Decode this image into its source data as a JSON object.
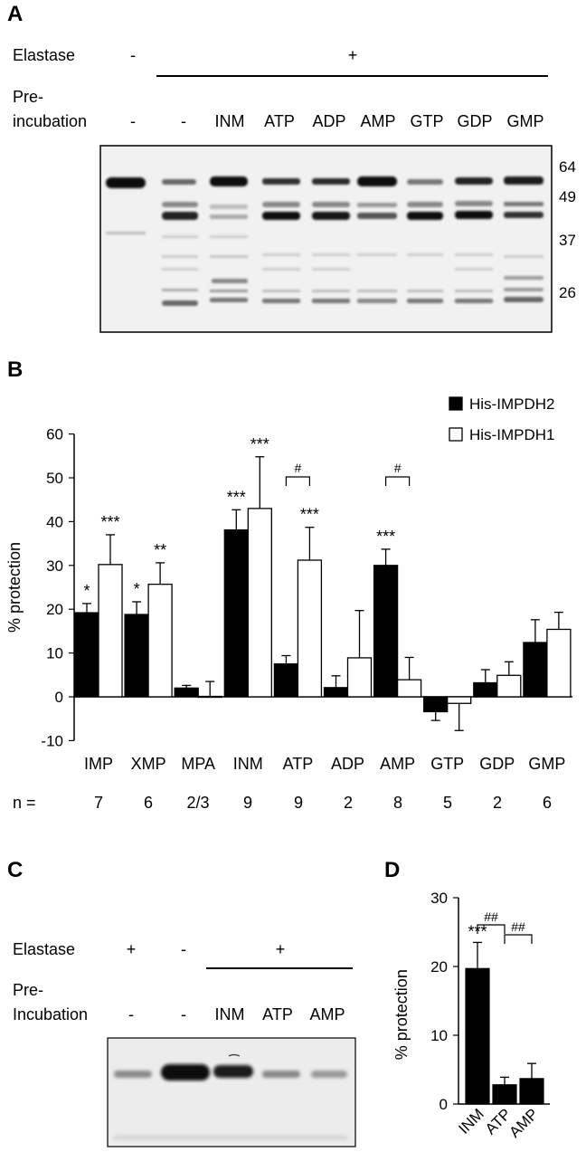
{
  "panelA": {
    "letter": "A",
    "elastase_label": "Elastase",
    "elastase_signs": [
      "-",
      "+"
    ],
    "preinc_label_line1": "Pre-",
    "preinc_label_line2": "incubation",
    "lanes": [
      "-",
      "-",
      "INM",
      "ATP",
      "ADP",
      "AMP",
      "GTP",
      "GDP",
      "GMP"
    ],
    "markers": [
      "64",
      "49",
      "37",
      "26"
    ]
  },
  "panelB": {
    "letter": "B",
    "n_label": "n =",
    "n_values": [
      "7",
      "6",
      "2/3",
      "9",
      "9",
      "2",
      "8",
      "5",
      "2",
      "6"
    ]
  },
  "panelC": {
    "letter": "C",
    "elastase_label": "Elastase",
    "elastase_signs": [
      "+",
      "-",
      "+"
    ],
    "preinc_label_line1": "Pre-",
    "preinc_label_line2": "Incubation",
    "lanes": [
      "-",
      "-",
      "INM",
      "ATP",
      "AMP"
    ]
  },
  "panelD": {
    "letter": "D"
  },
  "chart_data": [
    {
      "id": "B",
      "type": "bar",
      "categories": [
        "IMP",
        "XMP",
        "MPA",
        "INM",
        "ATP",
        "ADP",
        "AMP",
        "GTP",
        "GDP",
        "GMP"
      ],
      "series": [
        {
          "name": "His-IMPDH2",
          "color": "#000000",
          "values": [
            19.2,
            18.8,
            2.0,
            38.1,
            7.5,
            2.1,
            30.0,
            -3.4,
            3.2,
            12.4
          ],
          "errors": [
            2.1,
            2.9,
            0.6,
            4.6,
            1.9,
            2.7,
            3.7,
            2.0,
            3.0,
            5.2
          ]
        },
        {
          "name": "His-IMPDH1",
          "color": "#ffffff",
          "values": [
            30.2,
            25.7,
            0.1,
            43.0,
            31.2,
            8.9,
            3.9,
            -1.5,
            4.9,
            15.4
          ],
          "errors": [
            6.8,
            4.9,
            3.4,
            11.8,
            7.5,
            10.8,
            5.1,
            6.2,
            3.1,
            3.9
          ]
        }
      ],
      "ylabel": "% protection",
      "ylim": [
        -10,
        60
      ],
      "yticks": [
        -10,
        0,
        10,
        20,
        30,
        40,
        50,
        60
      ],
      "legend_position": "top-right",
      "annotations": [
        {
          "category": "IMP",
          "series": 0,
          "text": "*"
        },
        {
          "category": "IMP",
          "series": 1,
          "text": "***"
        },
        {
          "category": "XMP",
          "series": 0,
          "text": "*"
        },
        {
          "category": "XMP",
          "series": 1,
          "text": "**"
        },
        {
          "category": "INM",
          "series": 0,
          "text": "***"
        },
        {
          "category": "INM",
          "series": 1,
          "text": "***"
        },
        {
          "category": "ATP",
          "series": 1,
          "text": "***"
        },
        {
          "category": "AMP",
          "series": 0,
          "text": "***"
        }
      ],
      "brackets": [
        {
          "category": "ATP",
          "text": "#"
        },
        {
          "category": "AMP",
          "text": "#"
        }
      ]
    },
    {
      "id": "D",
      "type": "bar",
      "categories": [
        "INM",
        "ATP",
        "AMP"
      ],
      "values": [
        19.7,
        2.8,
        3.7
      ],
      "errors": [
        3.8,
        1.1,
        2.2
      ],
      "color": "#000000",
      "ylabel": "% protection",
      "ylim": [
        0,
        30
      ],
      "yticks": [
        0,
        10,
        20,
        30
      ],
      "annotations": [
        {
          "category": "INM",
          "text": "***"
        }
      ],
      "brackets": [
        {
          "from": "INM",
          "to": "ATP",
          "text": "##"
        },
        {
          "from": "ATP",
          "to": "AMP",
          "text": "##"
        }
      ]
    }
  ]
}
